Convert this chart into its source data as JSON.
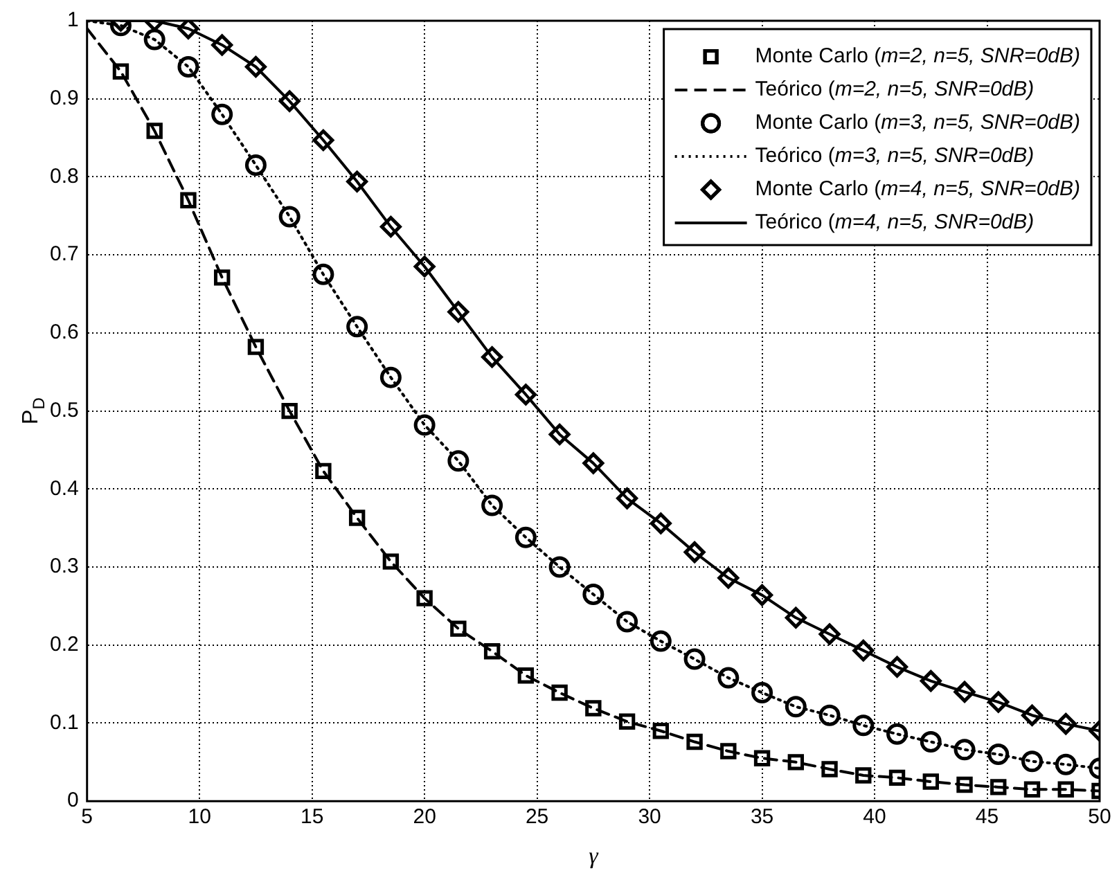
{
  "chart_data": {
    "type": "scatter",
    "xlabel": "γ",
    "ylabel": "P$_{D}$",
    "xlim": [
      5,
      50
    ],
    "ylim": [
      0,
      1
    ],
    "xticks": [
      5,
      10,
      15,
      20,
      25,
      30,
      35,
      40,
      45,
      50
    ],
    "yticks": [
      0,
      0.1,
      0.2,
      0.3,
      0.4,
      0.5,
      0.6,
      0.7,
      0.8,
      0.9,
      1
    ],
    "grid": true,
    "legend": "top right",
    "x": [
      6.5,
      8,
      9.5,
      11,
      12.5,
      14,
      15.5,
      17,
      18.5,
      20,
      21.5,
      23,
      24.5,
      26,
      27.5,
      29,
      30.5,
      32,
      33.5,
      35,
      36.5,
      38,
      39.5,
      41,
      42.5,
      44,
      45.5,
      47,
      48.5,
      50
    ],
    "series": [
      {
        "name": "Monte Carlo (m=2, n=5, SNR=0dB)",
        "type": "scatter",
        "marker": "square",
        "color": "#000000",
        "values": [
          0.935,
          0.859,
          0.77,
          0.671,
          0.582,
          0.5,
          0.423,
          0.363,
          0.307,
          0.26,
          0.221,
          0.192,
          0.161,
          0.139,
          0.119,
          0.102,
          0.09,
          0.076,
          0.064,
          0.055,
          0.05,
          0.041,
          0.033,
          0.03,
          0.025,
          0.021,
          0.018,
          0.015,
          0.015,
          0.013
        ]
      },
      {
        "name": "Teórico (m=2, n=5, SNR=0dB)",
        "type": "line",
        "marker": "none",
        "line_style": "dashed",
        "color": "#000000",
        "x": [
          5,
          6.5,
          8,
          9.5,
          11,
          12.5,
          14,
          15.5,
          17,
          18.5,
          20,
          21.5,
          23,
          24.5,
          26,
          27.5,
          29,
          30.5,
          32,
          33.5,
          35,
          36.5,
          38,
          39.5,
          41,
          42.5,
          44,
          45.5,
          47,
          48.5,
          50
        ],
        "values": [
          0.99,
          0.935,
          0.859,
          0.77,
          0.671,
          0.582,
          0.5,
          0.423,
          0.363,
          0.307,
          0.26,
          0.221,
          0.192,
          0.161,
          0.139,
          0.119,
          0.102,
          0.09,
          0.076,
          0.064,
          0.055,
          0.05,
          0.041,
          0.033,
          0.03,
          0.025,
          0.021,
          0.018,
          0.015,
          0.015,
          0.013
        ]
      },
      {
        "name": "Monte Carlo (m=3, n=5, SNR=0dB)",
        "type": "scatter",
        "marker": "circle",
        "color": "#000000",
        "values": [
          0.994,
          0.976,
          0.941,
          0.88,
          0.815,
          0.749,
          0.675,
          0.608,
          0.543,
          0.482,
          0.436,
          0.379,
          0.338,
          0.3,
          0.265,
          0.23,
          0.205,
          0.182,
          0.158,
          0.139,
          0.121,
          0.11,
          0.097,
          0.086,
          0.076,
          0.066,
          0.06,
          0.051,
          0.047,
          0.042
        ]
      },
      {
        "name": "Teórico (m=3, n=5, SNR=0dB)",
        "type": "line",
        "marker": "none",
        "line_style": "dotted",
        "color": "#000000",
        "x": [
          5,
          6.5,
          8,
          9.5,
          11,
          12.5,
          14,
          15.5,
          17,
          18.5,
          20,
          21.5,
          23,
          24.5,
          26,
          27.5,
          29,
          30.5,
          32,
          33.5,
          35,
          36.5,
          38,
          39.5,
          41,
          42.5,
          44,
          45.5,
          47,
          48.5,
          50
        ],
        "values": [
          1,
          0.994,
          0.976,
          0.941,
          0.88,
          0.815,
          0.749,
          0.675,
          0.608,
          0.543,
          0.482,
          0.436,
          0.379,
          0.338,
          0.3,
          0.265,
          0.23,
          0.205,
          0.182,
          0.158,
          0.139,
          0.121,
          0.11,
          0.097,
          0.086,
          0.076,
          0.066,
          0.06,
          0.051,
          0.047,
          0.042
        ]
      },
      {
        "name": "Monte Carlo (m=4, n=5, SNR=0dB)",
        "type": "scatter",
        "marker": "diamond",
        "color": "#000000",
        "values": [
          1,
          1,
          0.99,
          0.969,
          0.941,
          0.897,
          0.847,
          0.794,
          0.736,
          0.685,
          0.627,
          0.569,
          0.521,
          0.47,
          0.433,
          0.388,
          0.356,
          0.319,
          0.286,
          0.264,
          0.235,
          0.214,
          0.193,
          0.172,
          0.154,
          0.14,
          0.127,
          0.11,
          0.099,
          0.09
        ]
      },
      {
        "name": "Teórico (m=4, n=5, SNR=0dB)",
        "type": "line",
        "marker": "none",
        "line_style": "solid",
        "color": "#000000",
        "x": [
          6.5,
          8,
          9.5,
          11,
          12.5,
          14,
          15.5,
          17,
          18.5,
          20,
          21.5,
          23,
          24.5,
          26,
          27.5,
          29,
          30.5,
          32,
          33.5,
          35,
          36.5,
          38,
          39.5,
          41,
          42.5,
          44,
          45.5,
          47,
          48.5,
          50
        ],
        "values": [
          1,
          1,
          0.99,
          0.969,
          0.941,
          0.897,
          0.847,
          0.794,
          0.736,
          0.685,
          0.627,
          0.569,
          0.521,
          0.47,
          0.433,
          0.388,
          0.356,
          0.319,
          0.286,
          0.264,
          0.235,
          0.214,
          0.193,
          0.172,
          0.154,
          0.14,
          0.127,
          0.11,
          0.099,
          0.09
        ]
      }
    ]
  }
}
